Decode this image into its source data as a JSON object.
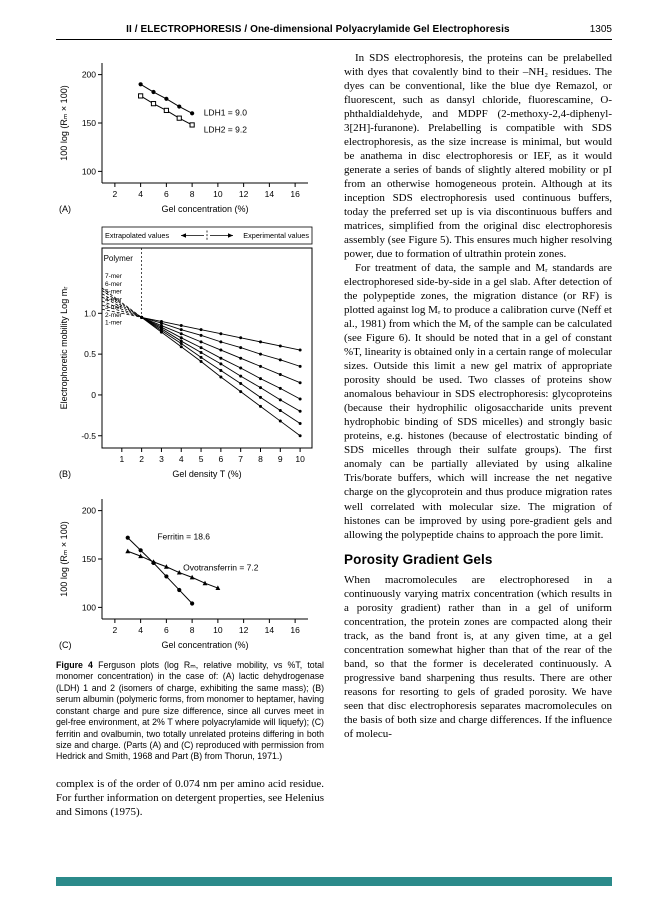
{
  "colors": {
    "footer_bar": "#2b8a8a",
    "text": "#000000",
    "paper": "#ffffff"
  },
  "header": {
    "title": "II / ELECTROPHORESIS / One-dimensional Polyacrylamide Gel Electrophoresis",
    "page_number": "1305"
  },
  "caption": {
    "label": "Figure 4",
    "text": "Ferguson plots (log Rₘ, relative mobility, vs %T, total monomer concentration) in the case of: (A) lactic dehydrogenase (LDH) 1 and 2 (isomers of charge, exhibiting the same mass); (B) serum albumin (polymeric forms, from monomer to heptamer, having constant charge and pure size difference, since all curves meet in gel-free environment, at 2% T where polyacrylamide will liquefy); (C) ferritin and ovalbumin, two totally unrelated proteins differing in both size and charge. (Parts (A) and (C) reproduced with permission from Hedrick and Smith, 1968 and Part (B) from Thorun, 1971.)"
  },
  "left_column": {
    "closing_paragraph": "complex is of the order of 0.074 nm per amino acid residue. For further information on detergent properties, see Helenius and Simons (1975)."
  },
  "right_column": {
    "para1": "In SDS electrophoresis, the proteins can be prelabelled with dyes that covalently bind to their –NH₂ residues. The dyes can be conventional, like the blue dye Remazol, or fluorescent, such as dansyl chloride, fluorescamine, O-phthaldialdehyde, and MDPF (2-methoxy-2,4-diphenyl-3[2H]-furanone). Prelabelling is compatible with SDS electrophoresis, as the size increase is minimal, but would be anathema in disc electrophoresis or IEF, as it would generate a series of bands of slightly altered mobility or pI from an otherwise homogeneous protein. Although at its inception SDS electrophoresis used continuous buffers, today the preferred set up is via discontinuous buffers and matrices, simplified from the original disc electrophoresis assembly (see Figure 5). This ensures much higher resolving power, due to formation of ultrathin protein zones.",
    "para2": "For treatment of data, the sample and Mᵣ standards are electrophoresed side-by-side in a gel slab. After detection of the polypeptide zones, the migration distance (or RF) is plotted against log Mᵣ to produce a calibration curve (Neff et al., 1981) from which the Mᵣ of the sample can be calculated (see Figure 6). It should be noted that in a gel of constant %T, linearity is obtained only in a certain range of molecular sizes. Outside this limit a new gel matrix of appropriate porosity should be used. Two classes of proteins show anomalous behaviour in SDS electrophoresis: glycoproteins (because their hydrophilic oligosaccharide units prevent hydrophobic binding of SDS micelles) and strongly basic proteins, e.g. histones (because of electrostatic binding of SDS micelles through their sulfate groups). The first anomaly can be partially alleviated by using alkaline Tris/borate buffers, which will increase the net negative charge on the glycoprotein and thus produce migration rates well correlated with molecular size. The migration of histones can be improved by using pore-gradient gels and allowing the polypeptide chains to approach the pore limit.",
    "heading": "Porosity Gradient Gels",
    "para3": "When macromolecules are electrophoresed in a continuously varying matrix concentration (which results in a porosity gradient) rather than in a gel of uniform concentration, the protein zones are compacted along their track, as the band front is, at any given time, at a gel concentration somewhat higher than that of the rear of the band, so that the former is decelerated continuously. A progressive band sharpening thus results. There are other reasons for resorting to gels of graded porosity. We have seen that disc electrophoresis separates macromolecules on the basis of both size and charge differences. If the influence of molecu-"
  },
  "chart_data": [
    {
      "id": "A",
      "type": "line",
      "panel_label": "(A)",
      "title": "",
      "xlabel": "Gel concentration (%)",
      "ylabel": "100 log (Rₘ × 100)",
      "xlim": [
        1,
        17
      ],
      "ylim": [
        88,
        212
      ],
      "xticks": [
        2,
        4,
        6,
        8,
        10,
        12,
        14,
        16
      ],
      "yticks": [
        100,
        150,
        200
      ],
      "box": false,
      "series": [
        {
          "name": "LDH1",
          "marker": "circle-filled",
          "x": [
            4,
            5,
            6,
            7,
            8
          ],
          "y": [
            190,
            182,
            175,
            167,
            160
          ]
        },
        {
          "name": "LDH2",
          "marker": "square-open",
          "x": [
            4,
            5,
            6,
            7,
            8
          ],
          "y": [
            178,
            170,
            163,
            155,
            148
          ]
        }
      ],
      "annotations": [
        {
          "text": "LDH1 = 9.0",
          "x": 8.9,
          "y": 158,
          "anchor": "start",
          "size": 8.5
        },
        {
          "text": "LDH2 = 9.2",
          "x": 8.9,
          "y": 140,
          "anchor": "start",
          "size": 8.5
        }
      ]
    },
    {
      "id": "B",
      "type": "line",
      "panel_label": "(B)",
      "title": "",
      "xlabel": "Gel density T (%)",
      "ylabel": "Electrophoretic mobility   Log mᵣ",
      "xlim": [
        0,
        10.6
      ],
      "ylim": [
        -0.65,
        1.8
      ],
      "xticks": [
        1,
        2,
        3,
        4,
        5,
        6,
        7,
        8,
        9,
        10
      ],
      "yticks": [
        1.0,
        0.5,
        0,
        -0.5
      ],
      "ytick_labels": [
        "1.0",
        "0.5",
        "0",
        "-0.5"
      ],
      "box": true,
      "legend": {
        "left": "Extrapolated values",
        "right": "Experimental values",
        "split_x": 2
      },
      "convergence": {
        "x": 2,
        "y": 0.95
      },
      "series": [
        {
          "name": "7-mer",
          "marker": "circle-filled",
          "split_x": 2,
          "x": [
            0,
            2,
            3,
            4,
            5,
            6,
            7,
            8,
            9,
            10
          ],
          "y": [
            1.31,
            0.95,
            0.77,
            0.59,
            0.41,
            0.22,
            0.04,
            -0.14,
            -0.32,
            -0.5
          ]
        },
        {
          "name": "6-mer",
          "marker": "circle-filled",
          "split_x": 2,
          "x": [
            0,
            2,
            3,
            4,
            5,
            6,
            7,
            8,
            9,
            10
          ],
          "y": [
            1.28,
            0.95,
            0.79,
            0.63,
            0.46,
            0.3,
            0.14,
            -0.03,
            -0.19,
            -0.35
          ]
        },
        {
          "name": "5-mer",
          "marker": "circle-filled",
          "split_x": 2,
          "x": [
            0,
            2,
            3,
            4,
            5,
            6,
            7,
            8,
            9,
            10
          ],
          "y": [
            1.24,
            0.95,
            0.81,
            0.66,
            0.52,
            0.38,
            0.23,
            0.09,
            -0.06,
            -0.2
          ]
        },
        {
          "name": "4-mer",
          "marker": "circle-filled",
          "split_x": 2,
          "x": [
            0,
            2,
            3,
            4,
            5,
            6,
            7,
            8,
            9,
            10
          ],
          "y": [
            1.2,
            0.95,
            0.83,
            0.7,
            0.58,
            0.45,
            0.33,
            0.2,
            0.08,
            -0.05
          ]
        },
        {
          "name": "3-mer",
          "marker": "circle-filled",
          "split_x": 2,
          "x": [
            0,
            2,
            3,
            4,
            5,
            6,
            7,
            8,
            9,
            10
          ],
          "y": [
            1.15,
            0.95,
            0.85,
            0.75,
            0.65,
            0.55,
            0.45,
            0.35,
            0.25,
            0.15
          ]
        },
        {
          "name": "2-mer",
          "marker": "circle-filled",
          "split_x": 2,
          "x": [
            0,
            2,
            3,
            4,
            5,
            6,
            7,
            8,
            9,
            10
          ],
          "y": [
            1.1,
            0.95,
            0.88,
            0.8,
            0.73,
            0.65,
            0.58,
            0.5,
            0.43,
            0.35
          ]
        },
        {
          "name": "1-mer",
          "marker": "circle-filled",
          "split_x": 2,
          "x": [
            0,
            2,
            3,
            4,
            5,
            6,
            7,
            8,
            9,
            10
          ],
          "y": [
            1.05,
            0.95,
            0.9,
            0.85,
            0.8,
            0.75,
            0.7,
            0.65,
            0.6,
            0.55
          ]
        }
      ],
      "annotations": [
        {
          "text": "Polymer",
          "x": 0.08,
          "y": 1.64,
          "anchor": "start",
          "size": 8
        },
        {
          "text": "7-mer",
          "x": 0.15,
          "y": 1.43,
          "anchor": "start",
          "size": 6.5
        },
        {
          "text": "6-mer",
          "x": 0.15,
          "y": 1.335,
          "anchor": "start",
          "size": 6.5
        },
        {
          "text": "5-mer",
          "x": 0.15,
          "y": 1.24,
          "anchor": "start",
          "size": 6.5
        },
        {
          "text": "4-mer",
          "x": 0.15,
          "y": 1.145,
          "anchor": "start",
          "size": 6.5
        },
        {
          "text": "3-mer",
          "x": 0.15,
          "y": 1.05,
          "anchor": "start",
          "size": 6.5
        },
        {
          "text": "2-mer",
          "x": 0.15,
          "y": 0.955,
          "anchor": "start",
          "size": 6.5
        },
        {
          "text": "1-mer",
          "x": 0.15,
          "y": 0.86,
          "anchor": "start",
          "size": 6.5
        }
      ]
    },
    {
      "id": "C",
      "type": "line",
      "panel_label": "(C)",
      "title": "",
      "xlabel": "Gel concentration (%)",
      "ylabel": "100 log (Rₘ × 100)",
      "xlim": [
        1,
        17
      ],
      "ylim": [
        88,
        212
      ],
      "xticks": [
        2,
        4,
        6,
        8,
        10,
        12,
        14,
        16
      ],
      "yticks": [
        100,
        150,
        200
      ],
      "box": false,
      "series": [
        {
          "name": "Ferritin",
          "marker": "circle-filled",
          "x": [
            3,
            4,
            5,
            6,
            7,
            8
          ],
          "y": [
            172,
            159,
            146,
            132,
            118,
            104
          ]
        },
        {
          "name": "Ovotransferrin",
          "marker": "triangle-filled",
          "x": [
            3,
            4,
            5,
            6,
            7,
            8,
            9,
            10
          ],
          "y": [
            158,
            153,
            147,
            142,
            136,
            131,
            125,
            120
          ]
        }
      ],
      "annotations": [
        {
          "text": "Ferritin = 18.6",
          "x": 5.3,
          "y": 170,
          "anchor": "start",
          "size": 8.5
        },
        {
          "text": "Ovotransferrin = 7.2",
          "x": 7.3,
          "y": 138,
          "anchor": "start",
          "size": 8.5
        }
      ]
    }
  ]
}
